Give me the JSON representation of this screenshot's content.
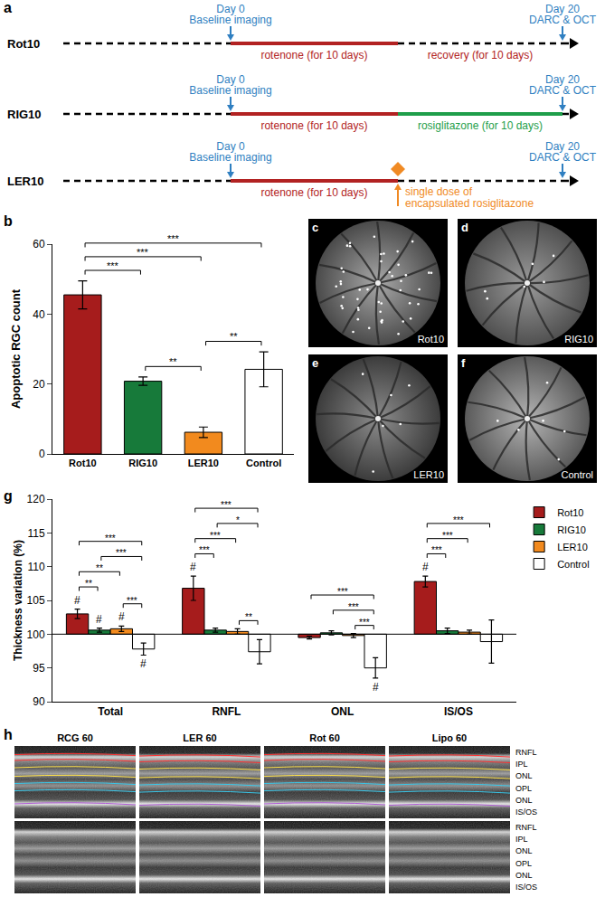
{
  "panel_labels": [
    "a",
    "b",
    "c",
    "d",
    "e",
    "f",
    "g",
    "h"
  ],
  "timeline": {
    "start": {
      "day": "Day 0",
      "event": "Baseline imaging"
    },
    "end": {
      "day": "Day 20",
      "event": "DARC & OCT"
    },
    "rows": [
      {
        "label": "Rot10",
        "phases": [
          {
            "text": "rotenone (for 10 days)",
            "color": "#b22222",
            "line_style": "solid"
          },
          {
            "text": "recovery (for 10 days)",
            "color": "#b22222",
            "line_style": "dashed"
          }
        ]
      },
      {
        "label": "RIG10",
        "phases": [
          {
            "text": "rotenone (for 10 days)",
            "color": "#b22222",
            "line_style": "solid"
          },
          {
            "text": "rosiglitazone (for 10 days)",
            "color": "#1e9e4a",
            "line_style": "solid"
          }
        ]
      },
      {
        "label": "LER10",
        "phases": [
          {
            "text": "rotenone (for 10 days)",
            "color": "#b22222",
            "line_style": "solid"
          },
          {
            "text": "single dose of\nencapsulated rosiglitazone",
            "color": "#f08a24",
            "line_style": "dashed",
            "marker": "diamond"
          }
        ]
      }
    ]
  },
  "chart_data": [
    {
      "type": "bar",
      "y_label": "Apoptotic RGC count",
      "categories": [
        "Rot10",
        "RIG10",
        "LER10",
        "Control"
      ],
      "values": [
        45.5,
        20.8,
        6.2,
        24.2
      ],
      "errors": [
        4.0,
        1.2,
        1.5,
        5.0
      ],
      "colors": [
        "#a61c1c",
        "#177a3a",
        "#f28a1e",
        "#ffffff"
      ],
      "ylim": [
        0,
        60
      ],
      "yticks": [
        0,
        20,
        40,
        60
      ],
      "significance": [
        {
          "pair": [
            "Rot10",
            "Control"
          ],
          "label": "***"
        },
        {
          "pair": [
            "Rot10",
            "LER10"
          ],
          "label": "***"
        },
        {
          "pair": [
            "Rot10",
            "RIG10"
          ],
          "label": "***"
        },
        {
          "pair": [
            "RIG10",
            "LER10"
          ],
          "label": "**"
        },
        {
          "pair": [
            "LER10",
            "Control"
          ],
          "label": "**"
        }
      ]
    },
    {
      "type": "bar",
      "y_label": "Thickness variation (%)",
      "categories": [
        "Total",
        "RNFL",
        "ONL",
        "IS/OS"
      ],
      "base": 100,
      "series": [
        {
          "name": "Rot10",
          "color": "#a61c1c",
          "values": [
            103.0,
            106.8,
            99.5,
            107.8
          ],
          "errors": [
            0.7,
            1.8,
            0.2,
            0.8
          ]
        },
        {
          "name": "RIG10",
          "color": "#177a3a",
          "values": [
            100.6,
            100.6,
            100.2,
            100.5
          ],
          "errors": [
            0.3,
            0.3,
            0.3,
            0.4
          ]
        },
        {
          "name": "LER10",
          "color": "#f28a1e",
          "values": [
            100.8,
            100.4,
            99.8,
            100.3
          ],
          "errors": [
            0.4,
            0.4,
            0.3,
            0.3
          ]
        },
        {
          "name": "Control",
          "color": "#ffffff",
          "values": [
            97.8,
            97.4,
            95.0,
            98.9
          ],
          "errors": [
            0.9,
            1.8,
            1.5,
            3.2
          ]
        }
      ],
      "ylim": [
        90,
        120
      ],
      "yticks": [
        90,
        95,
        100,
        105,
        110,
        115,
        120
      ],
      "legend": "upper right",
      "annotations": [
        {
          "category": "Total",
          "series": "Rot10",
          "text": "#"
        },
        {
          "category": "Total",
          "series": "RIG10",
          "text": "#"
        },
        {
          "category": "Total",
          "series": "LER10",
          "text": "#"
        },
        {
          "category": "Total",
          "series": "Control",
          "text": "#"
        },
        {
          "category": "RNFL",
          "series": "Rot10",
          "text": "#"
        },
        {
          "category": "ONL",
          "series": "Control",
          "text": "#"
        },
        {
          "category": "IS/OS",
          "series": "Rot10",
          "text": "#"
        }
      ],
      "significance": [
        {
          "category": "Total",
          "pair": [
            "Rot10",
            "RIG10"
          ],
          "label": "**"
        },
        {
          "category": "Total",
          "pair": [
            "Rot10",
            "LER10"
          ],
          "label": "**"
        },
        {
          "category": "Total",
          "pair": [
            "Rot10",
            "Control"
          ],
          "label": "***"
        },
        {
          "category": "Total",
          "pair": [
            "RIG10",
            "Control"
          ],
          "label": "***"
        },
        {
          "category": "Total",
          "pair": [
            "LER10",
            "Control"
          ],
          "label": "***"
        },
        {
          "category": "RNFL",
          "pair": [
            "Rot10",
            "RIG10"
          ],
          "label": "***"
        },
        {
          "category": "RNFL",
          "pair": [
            "Rot10",
            "LER10"
          ],
          "label": "***"
        },
        {
          "category": "RNFL",
          "pair": [
            "Rot10",
            "Control"
          ],
          "label": "***"
        },
        {
          "category": "RNFL",
          "pair": [
            "RIG10",
            "Control"
          ],
          "label": "*"
        },
        {
          "category": "RNFL",
          "pair": [
            "LER10",
            "Control"
          ],
          "label": "**"
        },
        {
          "category": "ONL",
          "pair": [
            "Rot10",
            "Control"
          ],
          "label": "***"
        },
        {
          "category": "ONL",
          "pair": [
            "RIG10",
            "Control"
          ],
          "label": "***"
        },
        {
          "category": "ONL",
          "pair": [
            "LER10",
            "Control"
          ],
          "label": "***"
        },
        {
          "category": "IS/OS",
          "pair": [
            "Rot10",
            "RIG10"
          ],
          "label": "***"
        },
        {
          "category": "IS/OS",
          "pair": [
            "Rot10",
            "LER10"
          ],
          "label": "***"
        },
        {
          "category": "IS/OS",
          "pair": [
            "Rot10",
            "Control"
          ],
          "label": "***"
        }
      ]
    }
  ],
  "fundus_images": [
    {
      "label": "Rot10"
    },
    {
      "label": "RIG10"
    },
    {
      "label": "LER10"
    },
    {
      "label": "Control"
    }
  ],
  "oct_images": {
    "columns": [
      "RCG 60",
      "LER 60",
      "Rot 60",
      "Lipo 60"
    ],
    "layers": [
      "RNFL",
      "IPL",
      "ONL",
      "OPL",
      "ONL",
      "IS/OS"
    ]
  }
}
